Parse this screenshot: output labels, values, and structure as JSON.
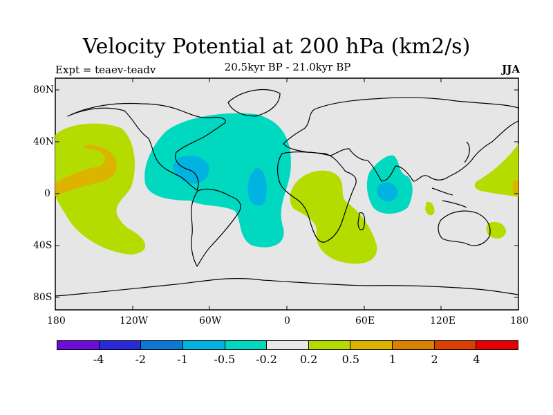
{
  "title": "Velocity Potential at 200 hPa (km2/s)",
  "left_subtitle": "Expt = teaev-teadv",
  "center_subtitle": "20.5kyr BP - 21.0kyr BP",
  "right_subtitle": "JJA",
  "y_ticks": [
    "80N",
    "40N",
    "0",
    "40S",
    "80S"
  ],
  "x_ticks": [
    "180",
    "120W",
    "60W",
    "0",
    "60E",
    "120E",
    "180"
  ],
  "colorbar": {
    "colors": [
      "#6a0fd8",
      "#2a2adb",
      "#0a79d6",
      "#00b3e0",
      "#00d8c0",
      "#e8e8e8",
      "#b4dc00",
      "#dcb400",
      "#dc8000",
      "#dc4000",
      "#e80000"
    ],
    "labels": [
      "-4",
      "-2",
      "-1",
      "-0.5",
      "-0.2",
      "0.2",
      "0.5",
      "1",
      "2",
      "4"
    ]
  },
  "colors": {
    "map_background": "#e6e6e6",
    "positive_low": "#b4dc00",
    "positive_mid": "#dcb400",
    "negative_low": "#00d8c0",
    "negative_mid": "#00b3e0"
  }
}
